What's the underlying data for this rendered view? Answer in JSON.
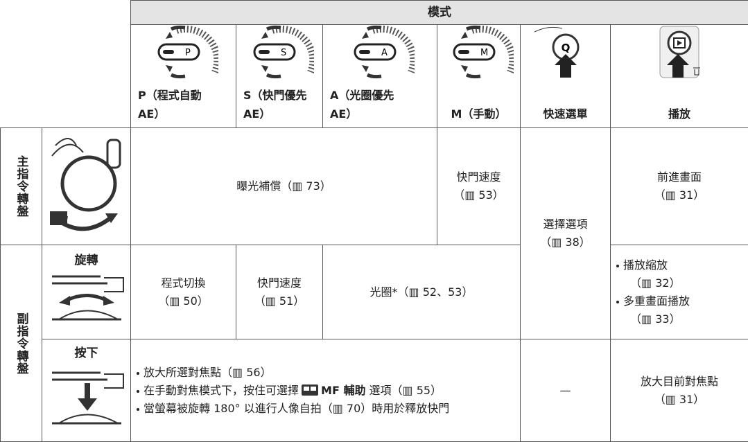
{
  "header": {
    "title": "模式"
  },
  "modes": [
    {
      "icon_letter": "P",
      "label": [
        "P（程式自動",
        "AE）"
      ]
    },
    {
      "icon_letter": "S",
      "label": [
        "S（快門優先",
        "AE）"
      ]
    },
    {
      "icon_letter": "A",
      "label": [
        "A（光圈優先",
        "AE）"
      ]
    },
    {
      "icon_letter": "M",
      "label": [
        "M（手動）"
      ]
    },
    {
      "icon_letter": "Q",
      "label": [
        "快速選單"
      ]
    },
    {
      "label": [
        "播放"
      ]
    }
  ],
  "rows": {
    "main": {
      "label": "主指令轉盤",
      "exposure": [
        "曝光補償（▥ 73）"
      ],
      "m_mode": [
        "快門速度",
        "（▥ 53）"
      ],
      "quick": [
        "選擇選項",
        "（▥ 38）"
      ],
      "play": [
        "前進畫面",
        "（▥ 31）"
      ]
    },
    "sub": {
      "label": "副指令轉盤",
      "rotate": {
        "label": "旋轉",
        "p_mode": [
          "程式切換",
          "（▥ 50）"
        ],
        "s_mode": [
          "快門速度",
          "（▥ 51）"
        ],
        "am_mode": [
          "光圈*（▥ 52、53）"
        ],
        "play": [
          "播放縮放",
          "（▥ 32）",
          "多重畫面播放",
          "（▥ 33）"
        ]
      },
      "press": {
        "label": "按下",
        "modes": [
          "放大所選對焦點（▥ 56）",
          "在手動對焦模式下，按住可選擇",
          "MF 輔助",
          "選項（▥ 55）",
          "當螢幕被旋轉 180° 以進行人像自拍（▥ 70）時用於釋放快門"
        ],
        "quick": "—",
        "play": [
          "放大目前對焦點",
          "（▥ 31）"
        ]
      }
    }
  }
}
